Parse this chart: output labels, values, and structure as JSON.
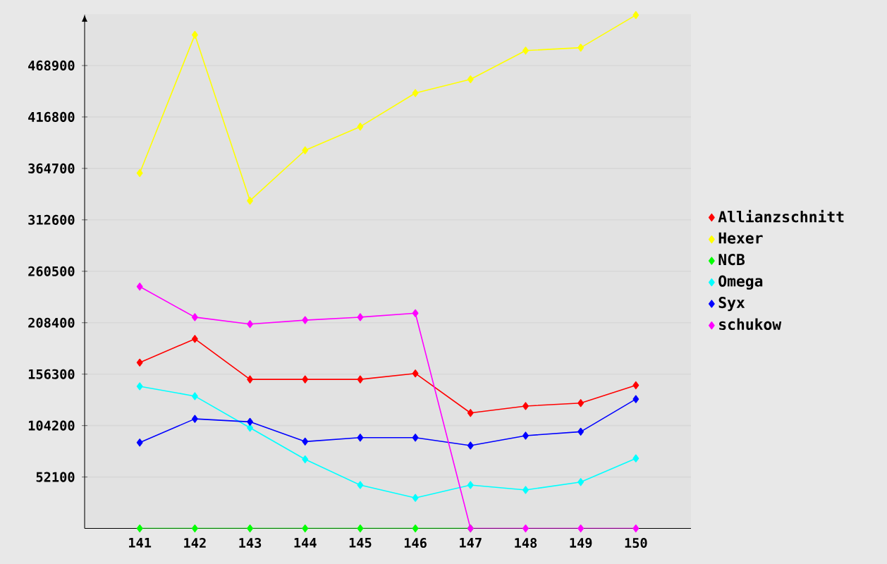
{
  "chart_data": {
    "type": "line",
    "categories": [
      "141",
      "142",
      "143",
      "144",
      "145",
      "146",
      "147",
      "148",
      "149",
      "150"
    ],
    "series": [
      {
        "name": "Allianzschnitt",
        "color": "#ff0000",
        "values": [
          168000,
          192000,
          151000,
          151000,
          151000,
          157000,
          117000,
          124000,
          127000,
          145000
        ]
      },
      {
        "name": "Hexer",
        "color": "#ffff00",
        "values": [
          360000,
          500000,
          332000,
          383000,
          407000,
          441000,
          455000,
          484000,
          487000,
          520000
        ]
      },
      {
        "name": "NCB",
        "color": "#00ff00",
        "values": [
          0,
          0,
          0,
          0,
          0,
          0,
          0,
          null,
          null,
          null
        ]
      },
      {
        "name": "Omega",
        "color": "#00ffff",
        "values": [
          144000,
          134000,
          102000,
          70000,
          44000,
          31000,
          44000,
          39000,
          47000,
          71000
        ]
      },
      {
        "name": "Syx",
        "color": "#0000ff",
        "values": [
          87000,
          111000,
          108000,
          88000,
          92000,
          92000,
          84000,
          94000,
          98000,
          131000
        ]
      },
      {
        "name": "schukow",
        "color": "#ff00ff",
        "values": [
          245000,
          214000,
          207000,
          211000,
          214000,
          218000,
          0,
          0,
          0,
          0
        ]
      }
    ],
    "ylim": [
      0,
      521000
    ],
    "yticks": [
      52100,
      104200,
      156300,
      208400,
      260500,
      312600,
      364700,
      416800,
      468900
    ],
    "grid": "y",
    "legend": "right",
    "marker": "diamond",
    "line_style": "solid"
  }
}
